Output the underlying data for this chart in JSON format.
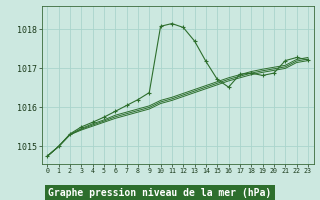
{
  "bg_color": "#cce8e0",
  "plot_bg_color": "#cce8e0",
  "grid_color": "#aad4cc",
  "line_color": "#2d6e2d",
  "marker_color": "#2d6e2d",
  "xlabel": "Graphe pression niveau de la mer (hPa)",
  "xlabel_fontsize": 7,
  "ylabel_ticks": [
    1015,
    1016,
    1017,
    1018
  ],
  "xlim": [
    -0.5,
    23.5
  ],
  "ylim": [
    1014.55,
    1018.6
  ],
  "series": [
    [
      1014.75,
      1015.0,
      1015.3,
      1015.42,
      1015.52,
      1015.62,
      1015.72,
      1015.8,
      1015.88,
      1015.96,
      1016.1,
      1016.18,
      1016.28,
      1016.38,
      1016.48,
      1016.58,
      1016.68,
      1016.76,
      1016.84,
      1016.9,
      1016.95,
      1017.0,
      1017.15,
      1017.2
    ],
    [
      1014.75,
      1015.0,
      1015.3,
      1015.44,
      1015.55,
      1015.65,
      1015.76,
      1015.84,
      1015.92,
      1016.0,
      1016.14,
      1016.22,
      1016.32,
      1016.42,
      1016.52,
      1016.62,
      1016.72,
      1016.8,
      1016.88,
      1016.94,
      1016.99,
      1017.04,
      1017.19,
      1017.24
    ],
    [
      1014.75,
      1015.0,
      1015.3,
      1015.46,
      1015.58,
      1015.68,
      1015.8,
      1015.88,
      1015.96,
      1016.04,
      1016.18,
      1016.26,
      1016.36,
      1016.46,
      1016.56,
      1016.66,
      1016.76,
      1016.84,
      1016.92,
      1016.98,
      1017.03,
      1017.08,
      1017.23,
      1017.28
    ],
    [
      1014.75,
      1015.0,
      1015.32,
      1015.5,
      1015.62,
      1015.75,
      1015.9,
      1016.05,
      1016.2,
      1016.38,
      1018.08,
      1018.15,
      1018.05,
      1017.7,
      1017.18,
      1016.72,
      1016.52,
      1016.85,
      1016.88,
      1016.82,
      1016.88,
      1017.2,
      1017.28,
      1017.22
    ]
  ],
  "xtick_labels": [
    "0",
    "1",
    "2",
    "3",
    "4",
    "5",
    "6",
    "7",
    "8",
    "9",
    "10",
    "11",
    "12",
    "13",
    "14",
    "15",
    "16",
    "17",
    "18",
    "19",
    "20",
    "21",
    "22",
    "23"
  ],
  "xlabel_bg": "#2d6e2d",
  "xlabel_fg": "#ffffff"
}
